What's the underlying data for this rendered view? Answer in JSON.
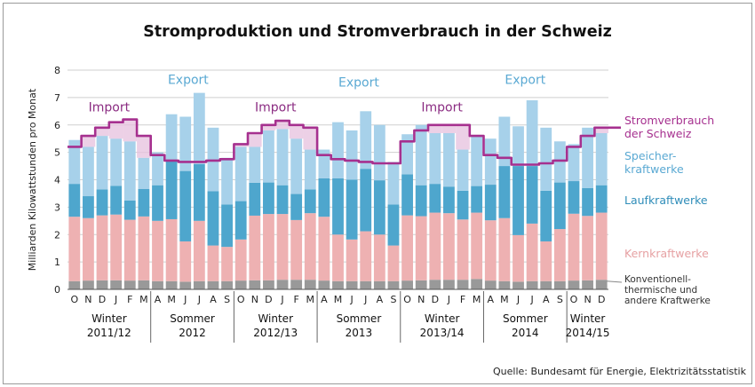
{
  "chart_data": {
    "type": "bar",
    "title": "Stromproduktion und Stromverbrauch in der Schweiz",
    "ylabel": "Milliarden Kilowattstunden pro Monat",
    "ylim": [
      0,
      8
    ],
    "yticks": [
      "0",
      "1",
      "2",
      "3",
      "4",
      "5",
      "6",
      "7",
      "8"
    ],
    "stacked": true,
    "grid": true,
    "categories": [
      "O",
      "N",
      "D",
      "J",
      "F",
      "M",
      "A",
      "M",
      "J",
      "J",
      "A",
      "S",
      "O",
      "N",
      "D",
      "J",
      "F",
      "M",
      "A",
      "M",
      "J",
      "J",
      "A",
      "S",
      "O",
      "N",
      "D",
      "J",
      "F",
      "M",
      "A",
      "M",
      "J",
      "J",
      "A",
      "S",
      "O",
      "N",
      "D"
    ],
    "periods": [
      {
        "label_line1": "Winter",
        "label_line2": "2011/12",
        "start": 0,
        "end": 5
      },
      {
        "label_line1": "Sommer",
        "label_line2": "2012",
        "start": 6,
        "end": 11
      },
      {
        "label_line1": "Winter",
        "label_line2": "2012/13",
        "start": 12,
        "end": 17
      },
      {
        "label_line1": "Sommer",
        "label_line2": "2013",
        "start": 18,
        "end": 23
      },
      {
        "label_line1": "Winter",
        "label_line2": "2013/14",
        "start": 24,
        "end": 29
      },
      {
        "label_line1": "Sommer",
        "label_line2": "2014",
        "start": 30,
        "end": 35
      },
      {
        "label_line1": "Winter",
        "label_line2": "2014/15",
        "start": 36,
        "end": 38
      }
    ],
    "series": [
      {
        "name": "Konventionell-thermische und andere Kraftwerke",
        "legend_lines": [
          "Konventionell-",
          "thermische und",
          "andere Kraftwerke"
        ],
        "color": "#999999",
        "values": [
          0.3,
          0.32,
          0.33,
          0.33,
          0.32,
          0.33,
          0.3,
          0.3,
          0.28,
          0.3,
          0.3,
          0.3,
          0.32,
          0.33,
          0.33,
          0.35,
          0.35,
          0.35,
          0.32,
          0.3,
          0.3,
          0.3,
          0.3,
          0.3,
          0.32,
          0.33,
          0.35,
          0.35,
          0.35,
          0.38,
          0.32,
          0.3,
          0.28,
          0.3,
          0.3,
          0.3,
          0.32,
          0.33,
          0.35
        ]
      },
      {
        "name": "Kernkraftwerke",
        "legend_lines": [
          "Kernkraftwerke"
        ],
        "color": "#eeb1b2",
        "values": [
          2.35,
          2.28,
          2.37,
          2.4,
          2.22,
          2.33,
          2.2,
          2.26,
          1.47,
          2.2,
          1.3,
          1.25,
          1.5,
          2.36,
          2.42,
          2.4,
          2.18,
          2.43,
          2.33,
          1.7,
          1.52,
          1.82,
          1.7,
          1.3,
          2.38,
          2.34,
          2.45,
          2.43,
          2.2,
          2.42,
          2.2,
          2.3,
          1.7,
          2.1,
          1.45,
          1.9,
          2.44,
          2.35,
          2.45
        ]
      },
      {
        "name": "Laufkraftwerke",
        "legend_lines": [
          "Laufkraftwerke"
        ],
        "color": "#4ea6cd",
        "values": [
          1.2,
          0.8,
          0.95,
          1.05,
          0.7,
          1.0,
          1.3,
          2.15,
          2.57,
          2.07,
          1.98,
          1.55,
          1.4,
          1.2,
          1.15,
          1.05,
          0.95,
          0.87,
          1.4,
          2.05,
          2.18,
          2.28,
          1.98,
          1.5,
          1.5,
          1.13,
          1.05,
          0.97,
          1.05,
          0.97,
          1.3,
          1.9,
          2.52,
          2.1,
          1.85,
          1.7,
          1.19,
          1.02,
          1.0
        ]
      },
      {
        "name": "Speicherkraftwerke",
        "legend_lines": [
          "Speicher-",
          "kraftwerke"
        ],
        "color": "#a7d1ea",
        "values": [
          1.6,
          1.8,
          1.95,
          1.72,
          2.16,
          1.14,
          1.2,
          1.68,
          1.98,
          2.6,
          2.32,
          1.7,
          1.98,
          1.31,
          1.9,
          2.05,
          2.02,
          1.45,
          1.05,
          2.05,
          1.8,
          2.1,
          2.02,
          1.55,
          1.46,
          2.2,
          1.85,
          1.95,
          1.5,
          1.83,
          1.68,
          1.8,
          1.45,
          2.4,
          2.3,
          1.5,
          1.35,
          2.2,
          1.9
        ]
      }
    ],
    "consumption": {
      "name": "Stromverbrauch der Schweiz",
      "legend_lines": [
        "Stromverbrauch",
        "der Schweiz"
      ],
      "color": "#a6308f",
      "values": [
        5.2,
        5.6,
        5.9,
        6.1,
        6.2,
        5.6,
        4.9,
        4.7,
        4.65,
        4.65,
        4.7,
        4.75,
        5.3,
        5.7,
        6.0,
        6.15,
        6.0,
        5.9,
        4.9,
        4.75,
        4.7,
        4.65,
        4.6,
        4.6,
        5.4,
        5.8,
        6.0,
        6.0,
        6.0,
        5.6,
        4.9,
        4.8,
        4.55,
        4.55,
        4.6,
        4.7,
        5.2,
        5.6,
        5.9
      ]
    },
    "annotations": [
      {
        "text": "Import",
        "color": "#8b2c82",
        "at": 2.5,
        "value": 6.5
      },
      {
        "text": "Export",
        "color": "#5aa9d3",
        "at": 8.2,
        "value": 7.5
      },
      {
        "text": "Import",
        "color": "#8b2c82",
        "at": 14.5,
        "value": 6.5
      },
      {
        "text": "Export",
        "color": "#5aa9d3",
        "at": 20.5,
        "value": 7.4
      },
      {
        "text": "Import",
        "color": "#8b2c82",
        "at": 26.5,
        "value": 6.5
      },
      {
        "text": "Export",
        "color": "#5aa9d3",
        "at": 32.5,
        "value": 7.5
      }
    ],
    "source": "Quelle: Bundesamt für Energie, Elektrizitätsstatistik"
  }
}
